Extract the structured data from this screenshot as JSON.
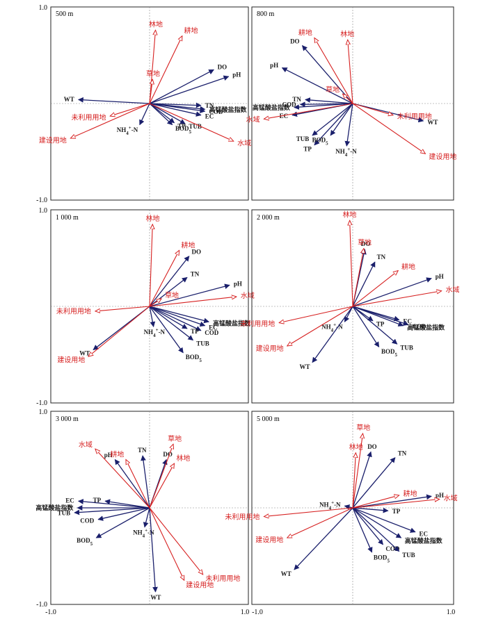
{
  "colors": {
    "env": "#1a1f6b",
    "land": "#d61f1f",
    "text_env": "#1a1a1a"
  },
  "axis_ticks": {
    "top": "1.0",
    "bottom": "-1.0",
    "left": "-1.0",
    "right": "1.0"
  },
  "chart_data": [
    {
      "type": "biplot",
      "title": "500 m",
      "xlim": [
        -1,
        1
      ],
      "ylim": [
        -1,
        1
      ],
      "series": [
        {
          "name": "",
          "kind": "env",
          "points": [
            {
              "label": "WT",
              "x": -0.72,
              "y": 0.04
            },
            {
              "label": "DO",
              "x": 0.65,
              "y": 0.35
            },
            {
              "label": "pH",
              "x": 0.8,
              "y": 0.28
            },
            {
              "label": "TN",
              "x": 0.52,
              "y": -0.02
            },
            {
              "label": "高锰酸盐指数",
              "x": 0.56,
              "y": -0.06
            },
            {
              "label": "COD",
              "x": 0.56,
              "y": -0.08
            },
            {
              "label": "EC",
              "x": 0.52,
              "y": -0.12
            },
            {
              "label": "TUB",
              "x": 0.36,
              "y": -0.21
            },
            {
              "label": "TP",
              "x": 0.25,
              "y": -0.2
            },
            {
              "label": "BOD5",
              "x": 0.23,
              "y": -0.22
            },
            {
              "label": "NH4+-N",
              "x": -0.1,
              "y": -0.22
            }
          ]
        },
        {
          "name": "",
          "kind": "land",
          "points": [
            {
              "label": "林地",
              "x": 0.06,
              "y": 0.76
            },
            {
              "label": "耕地",
              "x": 0.33,
              "y": 0.7
            },
            {
              "label": "草地",
              "x": 0.03,
              "y": 0.25
            },
            {
              "label": "未利用用地",
              "x": -0.4,
              "y": -0.13
            },
            {
              "label": "建设用地",
              "x": -0.8,
              "y": -0.36
            },
            {
              "label": "水域",
              "x": 0.85,
              "y": -0.39
            }
          ]
        }
      ]
    },
    {
      "type": "biplot",
      "title": "800 m",
      "xlim": [
        -1,
        1
      ],
      "ylim": [
        -1,
        1
      ],
      "series": [
        {
          "name": "",
          "kind": "env",
          "points": [
            {
              "label": "DO",
              "x": -0.5,
              "y": 0.6
            },
            {
              "label": "pH",
              "x": -0.7,
              "y": 0.37
            },
            {
              "label": "TN",
              "x": -0.47,
              "y": 0.04
            },
            {
              "label": "COD",
              "x": -0.52,
              "y": -0.01
            },
            {
              "label": "高锰酸盐指数",
              "x": -0.58,
              "y": -0.04
            },
            {
              "label": "EC",
              "x": -0.6,
              "y": -0.12
            },
            {
              "label": "TUB",
              "x": -0.4,
              "y": -0.33
            },
            {
              "label": "TP",
              "x": -0.38,
              "y": -0.43
            },
            {
              "label": "BOD5",
              "x": -0.22,
              "y": -0.33
            },
            {
              "label": "NH4+-N",
              "x": -0.06,
              "y": -0.44
            },
            {
              "label": "WT",
              "x": 0.7,
              "y": -0.18
            }
          ]
        },
        {
          "name": "",
          "kind": "land",
          "points": [
            {
              "label": "耕地",
              "x": -0.38,
              "y": 0.68
            },
            {
              "label": "林地",
              "x": -0.05,
              "y": 0.66
            },
            {
              "label": "草地",
              "x": -0.1,
              "y": 0.1
            },
            {
              "label": "水域",
              "x": -0.88,
              "y": -0.16
            },
            {
              "label": "未利用用地",
              "x": 0.4,
              "y": -0.12
            },
            {
              "label": "建设用地",
              "x": 0.72,
              "y": -0.52
            }
          ]
        }
      ]
    },
    {
      "type": "biplot",
      "title": "1 000 m",
      "xlim": [
        -1,
        1
      ],
      "ylim": [
        -1,
        1
      ],
      "series": [
        {
          "name": "",
          "kind": "env",
          "points": [
            {
              "label": "DO",
              "x": 0.4,
              "y": 0.52
            },
            {
              "label": "TN",
              "x": 0.38,
              "y": 0.3
            },
            {
              "label": "pH",
              "x": 0.81,
              "y": 0.22
            },
            {
              "label": "高锰酸盐指数",
              "x": 0.6,
              "y": -0.16
            },
            {
              "label": "EC",
              "x": 0.56,
              "y": -0.2
            },
            {
              "label": "COD",
              "x": 0.52,
              "y": -0.25
            },
            {
              "label": "TP",
              "x": 0.38,
              "y": -0.23
            },
            {
              "label": "TUB",
              "x": 0.44,
              "y": -0.35
            },
            {
              "label": "BOD5",
              "x": 0.34,
              "y": -0.48
            },
            {
              "label": "NH4+-N",
              "x": 0.04,
              "y": -0.21
            },
            {
              "label": "WT",
              "x": -0.57,
              "y": -0.45
            }
          ]
        },
        {
          "name": "",
          "kind": "land",
          "points": [
            {
              "label": "林地",
              "x": 0.03,
              "y": 0.85
            },
            {
              "label": "耕地",
              "x": 0.3,
              "y": 0.58
            },
            {
              "label": "草地",
              "x": 0.12,
              "y": 0.08
            },
            {
              "label": "水域",
              "x": 0.88,
              "y": 0.1
            },
            {
              "label": "未利用用地",
              "x": -0.55,
              "y": -0.05
            },
            {
              "label": "建设用地",
              "x": -0.62,
              "y": -0.52
            }
          ]
        }
      ]
    },
    {
      "type": "biplot",
      "title": "2 000 m",
      "xlim": [
        -1,
        1
      ],
      "ylim": [
        -1,
        1
      ],
      "series": [
        {
          "name": "",
          "kind": "env",
          "points": [
            {
              "label": "DO",
              "x": 0.12,
              "y": 0.59
            },
            {
              "label": "TN",
              "x": 0.22,
              "y": 0.46
            },
            {
              "label": "pH",
              "x": 0.78,
              "y": 0.29
            },
            {
              "label": "EC",
              "x": 0.46,
              "y": -0.14
            },
            {
              "label": "COD",
              "x": 0.55,
              "y": -0.19
            },
            {
              "label": "高锰酸盐指数",
              "x": 0.5,
              "y": -0.2
            },
            {
              "label": "TP",
              "x": 0.2,
              "y": -0.15
            },
            {
              "label": "TUB",
              "x": 0.44,
              "y": -0.39
            },
            {
              "label": "BOD5",
              "x": 0.26,
              "y": -0.42
            },
            {
              "label": "NH4+-N",
              "x": -0.08,
              "y": -0.16
            },
            {
              "label": "WT",
              "x": -0.4,
              "y": -0.58
            }
          ]
        },
        {
          "name": "",
          "kind": "land",
          "points": [
            {
              "label": "林地",
              "x": -0.03,
              "y": 0.89
            },
            {
              "label": "草地",
              "x": 0.11,
              "y": 0.6
            },
            {
              "label": "耕地",
              "x": 0.45,
              "y": 0.37
            },
            {
              "label": "水域",
              "x": 0.88,
              "y": 0.16
            },
            {
              "label": "未利用用地",
              "x": -0.73,
              "y": -0.17
            },
            {
              "label": "建设用地",
              "x": -0.65,
              "y": -0.41
            }
          ]
        }
      ]
    },
    {
      "type": "biplot",
      "title": "3 000 m",
      "xlim": [
        -1,
        1
      ],
      "ylim": [
        -1,
        1
      ],
      "series": [
        {
          "name": "",
          "kind": "env",
          "points": [
            {
              "label": "TN",
              "x": -0.07,
              "y": 0.54
            },
            {
              "label": "pH",
              "x": -0.35,
              "y": 0.5
            },
            {
              "label": "DO",
              "x": 0.17,
              "y": 0.5
            },
            {
              "label": "TP",
              "x": -0.45,
              "y": 0.07
            },
            {
              "label": "EC",
              "x": -0.72,
              "y": 0.07
            },
            {
              "label": "高锰酸盐指数",
              "x": -0.73,
              "y": 0.0
            },
            {
              "label": "TUB",
              "x": -0.76,
              "y": -0.05
            },
            {
              "label": "COD",
              "x": -0.52,
              "y": -0.12
            },
            {
              "label": "BOD5",
              "x": -0.54,
              "y": -0.31
            },
            {
              "label": "NH4+-N",
              "x": -0.05,
              "y": -0.2
            },
            {
              "label": "WT",
              "x": 0.06,
              "y": -0.87
            }
          ]
        },
        {
          "name": "",
          "kind": "land",
          "points": [
            {
              "label": "水域",
              "x": -0.55,
              "y": 0.61
            },
            {
              "label": "耕地",
              "x": -0.24,
              "y": 0.5
            },
            {
              "label": "草地",
              "x": 0.24,
              "y": 0.66
            },
            {
              "label": "林地",
              "x": 0.25,
              "y": 0.46
            },
            {
              "label": "建设用地",
              "x": 0.35,
              "y": -0.75
            },
            {
              "label": "未利用用地",
              "x": 0.54,
              "y": -0.69
            }
          ]
        }
      ]
    },
    {
      "type": "biplot",
      "title": "5 000 m",
      "xlim": [
        -1,
        1
      ],
      "ylim": [
        -1,
        1
      ],
      "series": [
        {
          "name": "",
          "kind": "env",
          "points": [
            {
              "label": "DO",
              "x": 0.18,
              "y": 0.58
            },
            {
              "label": "TN",
              "x": 0.42,
              "y": 0.52
            },
            {
              "label": "pH",
              "x": 0.78,
              "y": 0.12
            },
            {
              "label": "TP",
              "x": 0.35,
              "y": -0.03
            },
            {
              "label": "EC",
              "x": 0.62,
              "y": -0.25
            },
            {
              "label": "高锰酸盐指数",
              "x": 0.48,
              "y": -0.31
            },
            {
              "label": "COD",
              "x": 0.3,
              "y": -0.38
            },
            {
              "label": "TUB",
              "x": 0.46,
              "y": -0.45
            },
            {
              "label": "BOD5",
              "x": 0.19,
              "y": -0.46
            },
            {
              "label": "NH4+-N",
              "x": -0.08,
              "y": 0.02
            },
            {
              "label": "WT",
              "x": -0.58,
              "y": -0.64
            }
          ]
        },
        {
          "name": "",
          "kind": "land",
          "points": [
            {
              "label": "草地",
              "x": 0.1,
              "y": 0.77
            },
            {
              "label": "林地",
              "x": 0.03,
              "y": 0.57
            },
            {
              "label": "耕地",
              "x": 0.46,
              "y": 0.13
            },
            {
              "label": "水域",
              "x": 0.86,
              "y": 0.09
            },
            {
              "label": "未利用用地",
              "x": -0.88,
              "y": -0.09
            },
            {
              "label": "建设用地",
              "x": -0.65,
              "y": -0.31
            }
          ]
        }
      ]
    }
  ]
}
